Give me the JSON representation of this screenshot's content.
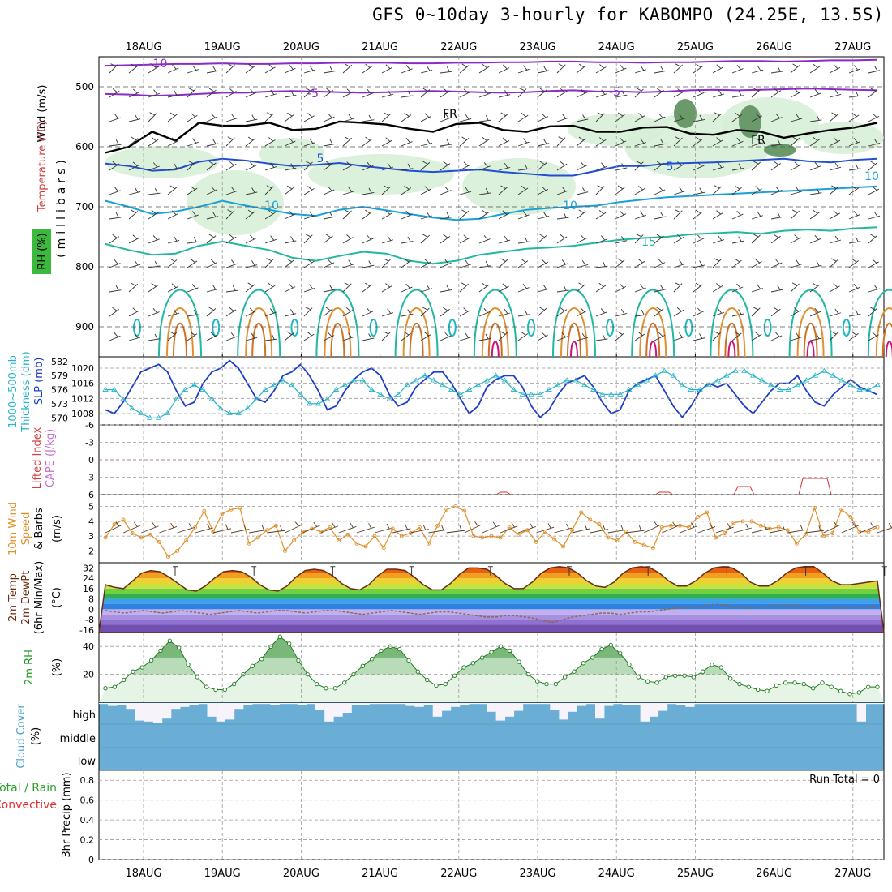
{
  "title": "GFS 0~10day 3-hourly for KABOMPO (24.25E, 13.5S)",
  "chart_data": [
    {
      "id": "upper_air",
      "type": "contour",
      "y_axis_title": "(millibars)",
      "label_wind": "Wind (m/s)",
      "label_temp": "Temperature (°C)",
      "label_rh": "RH (%)",
      "x_ticks": [
        "18AUG",
        "19AUG",
        "20AUG",
        "21AUG",
        "22AUG",
        "23AUG",
        "24AUG",
        "25AUG",
        "26AUG",
        "27AUG"
      ],
      "y_ticks": [
        500,
        600,
        700,
        800,
        900
      ],
      "ylim": [
        450,
        950
      ],
      "contour_labels": [
        "-10",
        "-5",
        "-5",
        "FR",
        "FR",
        "5",
        "5",
        "10",
        "10",
        "15",
        "10"
      ],
      "temperature_series": [
        {
          "name": "-10",
          "color": "#8a2bc8",
          "values": [
            465,
            464,
            463,
            462,
            462,
            461,
            462,
            462,
            461,
            461,
            460,
            460,
            460,
            461,
            461,
            460,
            460,
            459,
            459,
            458,
            458,
            459,
            459,
            460,
            459,
            459,
            458,
            457,
            457,
            458,
            457,
            456,
            456,
            455
          ]
        },
        {
          "name": "-5",
          "color": "#8a2bc8",
          "values": [
            512,
            513,
            515,
            514,
            512,
            510,
            510,
            508,
            507,
            508,
            509,
            510,
            509,
            508,
            507,
            508,
            509,
            510,
            509,
            507,
            506,
            508,
            508,
            509,
            508,
            506,
            505,
            506,
            505,
            504,
            503,
            504,
            505,
            506
          ]
        },
        {
          "name": "FR",
          "color": "#000000",
          "values": [
            610,
            600,
            575,
            590,
            560,
            565,
            565,
            560,
            572,
            570,
            558,
            560,
            563,
            570,
            575,
            562,
            560,
            572,
            575,
            566,
            565,
            575,
            575,
            568,
            567,
            578,
            580,
            572,
            575,
            585,
            578,
            572,
            568,
            560
          ]
        },
        {
          "name": "5",
          "color": "#2050d0",
          "values": [
            628,
            632,
            640,
            638,
            625,
            620,
            623,
            628,
            632,
            630,
            627,
            632,
            636,
            640,
            642,
            640,
            638,
            642,
            645,
            648,
            648,
            640,
            632,
            632,
            628,
            627,
            626,
            624,
            622,
            620,
            624,
            626,
            622,
            620
          ]
        },
        {
          "name": "10",
          "color": "#1aa0d8",
          "values": [
            690,
            700,
            712,
            708,
            700,
            690,
            698,
            705,
            712,
            715,
            705,
            700,
            706,
            712,
            718,
            722,
            720,
            712,
            705,
            702,
            700,
            698,
            692,
            688,
            684,
            682,
            680,
            678,
            676,
            674,
            672,
            670,
            668,
            666
          ]
        },
        {
          "name": "15",
          "color": "#20b8a0",
          "values": [
            762,
            772,
            780,
            778,
            765,
            758,
            765,
            772,
            785,
            790,
            782,
            775,
            778,
            790,
            795,
            790,
            780,
            775,
            770,
            768,
            765,
            760,
            755,
            752,
            750,
            746,
            744,
            742,
            745,
            740,
            738,
            740,
            736,
            734
          ]
        }
      ]
    },
    {
      "id": "slp_thickness",
      "type": "line",
      "left_label_1": "1000~500mb",
      "left_label_2": "Thickness (dm)",
      "right_label": "SLP (mb)",
      "y_ticks_left": [
        570,
        573,
        576,
        579,
        582
      ],
      "y_ticks_right": [
        1008,
        1012,
        1016,
        1020
      ],
      "series": [
        {
          "name": "SLP",
          "color": "#1c3ec8",
          "values": [
            1009,
            1008,
            1011,
            1015,
            1019,
            1020,
            1021,
            1019,
            1014,
            1010,
            1011,
            1016,
            1019,
            1020,
            1022,
            1020,
            1016,
            1012,
            1011,
            1014,
            1018,
            1019,
            1021,
            1018,
            1014,
            1009,
            1010,
            1014,
            1017,
            1019,
            1020,
            1018,
            1013,
            1010,
            1011,
            1015,
            1017,
            1019,
            1019,
            1016,
            1012,
            1008,
            1010,
            1015,
            1017,
            1018,
            1018,
            1015,
            1010,
            1007,
            1009,
            1013,
            1016,
            1017,
            1018,
            1015,
            1011,
            1008,
            1009,
            1014,
            1016,
            1017,
            1018,
            1014,
            1010,
            1007,
            1010,
            1014,
            1016,
            1015,
            1016,
            1013,
            1010,
            1008,
            1011,
            1014,
            1016,
            1016,
            1018,
            1014,
            1011,
            1010,
            1013,
            1015,
            1017,
            1015,
            1014,
            1013
          ]
        },
        {
          "name": "Thickness",
          "color": "#28b4c8",
          "values": [
            576,
            576,
            574,
            572,
            571,
            570,
            570,
            571,
            574,
            576,
            577,
            576,
            574,
            572,
            571,
            571,
            572,
            574,
            576,
            577,
            578,
            577,
            575,
            573,
            573,
            574,
            576,
            577,
            578,
            578,
            576,
            575,
            574,
            575,
            577,
            578,
            579,
            578,
            577,
            576,
            575,
            576,
            577,
            578,
            579,
            578,
            576,
            575,
            575,
            575,
            576,
            577,
            578,
            578,
            577,
            576,
            575,
            575,
            575,
            576,
            577,
            578,
            579,
            580,
            579,
            577,
            576,
            576,
            577,
            578,
            579,
            580,
            580,
            579,
            578,
            577,
            576,
            576,
            577,
            578,
            579,
            580,
            579,
            578,
            577,
            576,
            576,
            577
          ]
        }
      ]
    },
    {
      "id": "cape_li",
      "type": "line",
      "left_label_1": "Lifted Index",
      "left_label_2": "CAPE (J/kg)",
      "y_ticks": [
        -6,
        -3,
        0,
        3,
        6
      ],
      "zero_line": 0
    },
    {
      "id": "wind10m",
      "type": "line",
      "left_label_1": "10m Wind",
      "left_label_2": "Speed",
      "left_label_3": "& Barbs",
      "units": "(m/s)",
      "y_ticks": [
        2,
        3,
        4,
        5
      ],
      "series": [
        {
          "name": "speed",
          "color": "#e0902a",
          "values": [
            2.9,
            3.8,
            4.1,
            3.2,
            2.9,
            3.1,
            2.6,
            1.6,
            2.0,
            2.7,
            3.6,
            4.7,
            3.3,
            4.5,
            4.8,
            4.9,
            2.5,
            2.9,
            3.4,
            3.7,
            2.0,
            2.7,
            3.3,
            3.5,
            3.3,
            3.6,
            2.7,
            3.1,
            2.5,
            2.3,
            3.0,
            2.2,
            3.5,
            3.0,
            3.2,
            3.6,
            2.5,
            3.7,
            4.8,
            5.0,
            4.7,
            3.0,
            2.9,
            3.0,
            2.9,
            3.6,
            3.1,
            3.4,
            2.6,
            3.3,
            2.8,
            2.3,
            3.4,
            4.6,
            4.1,
            3.8,
            2.9,
            2.7,
            3.3,
            2.6,
            2.4,
            2.2,
            3.6,
            3.7,
            3.7,
            3.6,
            4.3,
            4.6,
            2.9,
            3.2,
            3.9,
            4.0,
            4.0,
            3.7,
            3.5,
            3.6,
            3.4,
            2.5,
            3.1,
            4.9,
            3.0,
            3.2,
            4.8,
            4.3,
            3.3,
            3.3,
            3.6
          ]
        }
      ]
    },
    {
      "id": "temp2m",
      "type": "area",
      "left_label_1": "2m Temp",
      "left_label_2": "2m DewPt",
      "left_label_3": "(6hr Min/Max)",
      "units": "(°C)",
      "y_ticks": [
        32,
        24,
        16,
        8,
        0,
        -8,
        -16
      ],
      "series": [
        {
          "name": "temp",
          "color": "#6b2d12",
          "values": [
            19,
            17,
            16,
            22,
            28,
            30,
            29,
            25,
            20,
            15,
            14,
            18,
            24,
            29,
            30,
            29,
            25,
            19,
            15,
            14,
            18,
            25,
            30,
            31,
            30,
            26,
            20,
            16,
            15,
            19,
            26,
            31,
            31,
            30,
            25,
            19,
            15,
            15,
            20,
            27,
            32,
            32,
            31,
            26,
            20,
            16,
            16,
            21,
            28,
            32,
            33,
            32,
            28,
            22,
            18,
            17,
            21,
            28,
            32,
            33,
            32,
            28,
            22,
            18,
            18,
            22,
            28,
            32,
            33,
            32,
            28,
            21,
            18,
            18,
            22,
            28,
            32,
            33,
            33,
            28,
            22,
            19,
            19,
            20,
            21,
            22
          ]
        },
        {
          "name": "dewpt",
          "color": "#8a6a50",
          "values": [
            -1,
            -2,
            -3,
            -2,
            -1,
            -2,
            -3,
            -2,
            -1,
            -2,
            -3,
            -4,
            -3,
            -2,
            -1,
            -2,
            -3,
            -2,
            -1,
            -1,
            -2,
            -3,
            -2,
            -1,
            -1,
            -2,
            -3,
            -4,
            -3,
            -2,
            -1,
            -2,
            -3,
            -4,
            -3,
            -2,
            -2,
            -3,
            -4,
            -5,
            -6,
            -6,
            -5,
            -5,
            -6,
            -7,
            -9,
            -10,
            -8,
            -6,
            -5,
            -4,
            -3,
            -3,
            -4,
            -3,
            -2,
            -2,
            -1,
            0,
            1,
            1,
            2,
            3,
            4,
            3,
            2,
            1,
            1,
            2,
            3,
            3,
            3,
            2,
            2,
            2,
            1,
            1,
            1,
            2,
            2,
            3
          ]
        }
      ]
    },
    {
      "id": "rh2m",
      "type": "area",
      "left_label": "2m RH",
      "units": "(%)",
      "y_ticks": [
        20,
        40
      ],
      "series": [
        {
          "name": "rh",
          "color": "#1e7a1e",
          "values": [
            10,
            11,
            16,
            22,
            25,
            30,
            37,
            44,
            39,
            27,
            18,
            11,
            9,
            9,
            13,
            20,
            26,
            31,
            40,
            47,
            42,
            30,
            20,
            13,
            10,
            10,
            14,
            20,
            26,
            31,
            37,
            40,
            38,
            30,
            22,
            16,
            12,
            13,
            19,
            25,
            28,
            32,
            36,
            40,
            37,
            29,
            20,
            15,
            13,
            13,
            18,
            22,
            28,
            32,
            38,
            41,
            35,
            27,
            18,
            15,
            14,
            18,
            19,
            19,
            18,
            22,
            27,
            25,
            17,
            13,
            11,
            9,
            8,
            12,
            14,
            14,
            13,
            10,
            14,
            11,
            8,
            6,
            7,
            11,
            11
          ]
        }
      ]
    },
    {
      "id": "cloud",
      "type": "bar",
      "left_label_1": "Cloud Cover",
      "left_label_2": "(%)",
      "levels": [
        "high",
        "middle",
        "low"
      ],
      "high_clear_fraction": [
        0.05,
        0.15,
        0.1,
        0.3,
        0.9,
        0.95,
        1.0,
        0.8,
        0.3,
        0.2,
        0.1,
        0.05,
        0.7,
        0.95,
        0.85,
        0.3,
        0.1,
        0.05,
        0.05,
        0.1,
        0.05,
        0.05,
        0.1,
        0.05,
        0.35,
        0.95,
        0.7,
        0.5,
        0.1,
        0.1,
        0.05,
        0.05,
        0.05,
        0.05,
        0.15,
        0.2,
        0.1,
        0.7,
        0.4,
        0.2,
        0.1,
        0.05,
        0.05,
        0.45,
        0.9,
        0.7,
        0.4,
        0.05,
        0.05,
        0.05,
        0.35,
        0.85,
        0.45,
        0.15,
        0.05,
        0.8,
        0.15,
        0.05,
        0.1,
        0.1,
        0.95,
        0.7,
        0.4,
        0.05,
        0.1,
        0.2,
        0.05,
        0.05,
        0.05,
        0.05,
        0.05,
        0.05,
        0.05,
        0.05,
        0.05,
        0.05,
        0.05,
        0.05,
        0.05,
        0.05,
        0.05,
        0.05,
        0.05,
        0.05,
        0.95,
        0.05,
        0.05
      ]
    },
    {
      "id": "precip",
      "type": "bar",
      "left_label_1": "Total / Rain",
      "left_label_2": "Convective",
      "left_label_3": "3hr Precip (mm)",
      "annotation": "Run Total = 0",
      "y_ticks": [
        0,
        0.2,
        0.4,
        0.6,
        0.8
      ],
      "ylim": [
        0,
        0.9
      ],
      "x_ticks": [
        "18AUG",
        "19AUG",
        "20AUG",
        "21AUG",
        "22AUG",
        "23AUG",
        "24AUG",
        "25AUG",
        "26AUG",
        "27AUG"
      ]
    }
  ]
}
